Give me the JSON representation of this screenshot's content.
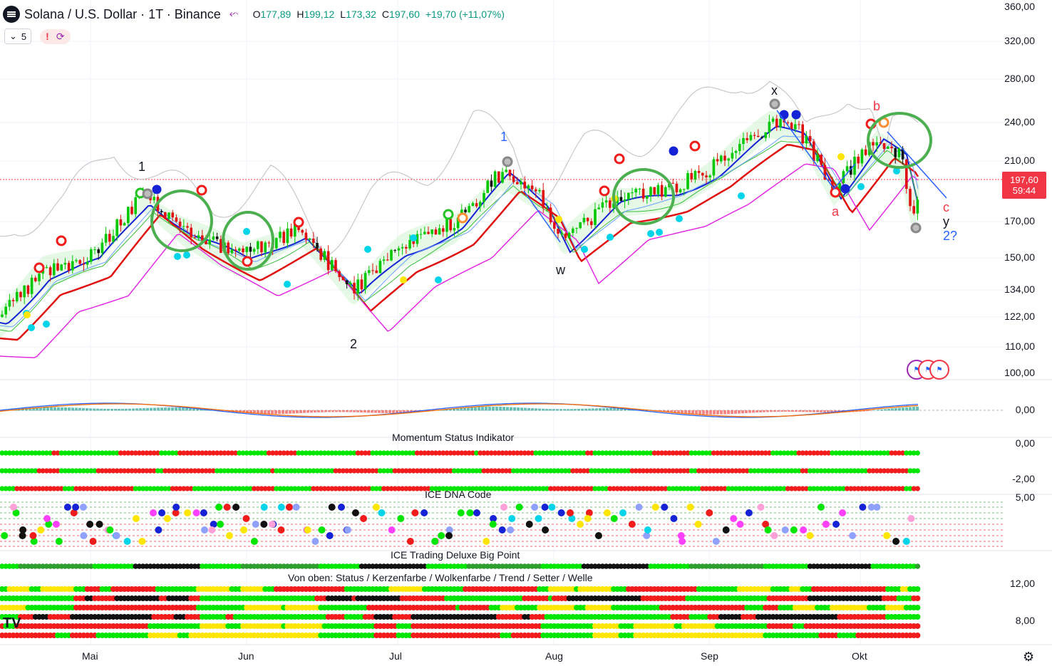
{
  "header": {
    "symbol_title": "Solana / U.S. Dollar · 1T · Binance",
    "open_label": "O",
    "open": "177,89",
    "high_label": "H",
    "high": "199,12",
    "low_label": "L",
    "low": "173,32",
    "close_label": "C",
    "close": "197,60",
    "change": "+19,70 (+11,07%)",
    "lot_value": "5",
    "alert_mark": "!"
  },
  "price_axis": [
    "360,00",
    "320,00",
    "280,00",
    "240,00",
    "210,00",
    "170,00",
    "150,00",
    "134,00",
    "122,00",
    "110,00",
    "100,00"
  ],
  "price_tag": {
    "price": "197,60",
    "countdown": "59:44"
  },
  "macd_axis": [
    "0,00"
  ],
  "momentum_axis": [
    "0,00",
    "-2,00"
  ],
  "dna_axis": [
    "5,00"
  ],
  "big_point_axis": [
    "12,00",
    "8,00"
  ],
  "time_axis": [
    "Mai",
    "Jun",
    "Jul",
    "Aug",
    "Sep",
    "Okt"
  ],
  "pane_titles": {
    "momentum": "Momentum Status Indikator",
    "dna": "ICE DNA Code",
    "big_point": "ICE Trading Deluxe Big Point",
    "legend": "Von oben: Status / Kerzenfarbe / Wolkenfarbe / Trend / Setter / Welle"
  },
  "wave_labels": {
    "w1": "1",
    "w2": "2",
    "blue1": "1",
    "w": "w",
    "x": "x",
    "a": "a",
    "b": "b",
    "c": "c",
    "y": "y",
    "q2": "2?"
  },
  "colors": {
    "up": "#089981",
    "down": "#f23645",
    "bull_green": "#00e600",
    "bear_red": "#f21c1c",
    "black": "#111111",
    "yellow": "#ffe600",
    "blue_line": "#1522d6",
    "red_line": "#e01010",
    "cyan": "#00d4e8"
  },
  "chart_data": {
    "type": "candlestick",
    "title": "Solana / U.S. Dollar · 1T · Binance",
    "ylabel": "",
    "y_scale": "log",
    "ylim": [
      95,
      365
    ],
    "x_categories": [
      "Mai",
      "Jun",
      "Jul",
      "Aug",
      "Sep",
      "Okt"
    ],
    "key_points": [
      {
        "label": "1",
        "date": "Mai",
        "value": 190
      },
      {
        "label": "2",
        "date": "Jun",
        "value": 122
      },
      {
        "label": "1",
        "date": "Jul",
        "value": 210
      },
      {
        "label": "w",
        "date": "Aug",
        "value": 155
      },
      {
        "label": "x",
        "date": "Sep",
        "value": 252
      },
      {
        "label": "a",
        "date": "Sep",
        "value": 185
      },
      {
        "label": "b",
        "date": "Okt",
        "value": 240
      },
      {
        "label": "c",
        "date": "Okt",
        "value": 172
      }
    ],
    "last": {
      "open": 177.89,
      "high": 199.12,
      "low": 173.32,
      "close": 197.6
    }
  }
}
